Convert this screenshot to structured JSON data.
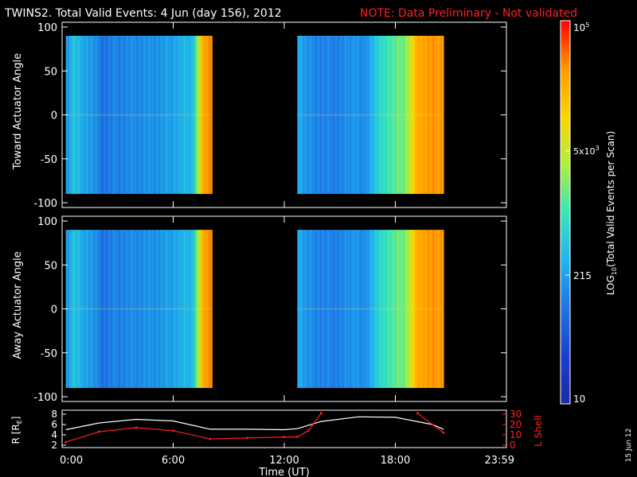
{
  "header": {
    "title": "TWINS2. Total Valid Events:  4 Jun (day 156), 2012",
    "note": "NOTE: Data Preliminary - Not validated"
  },
  "chart_data": [
    {
      "type": "heatmap",
      "panel": "top",
      "ylabel": "Toward Actuator Angle",
      "ylim": [
        -100,
        100
      ],
      "yticks": [
        "100",
        "50",
        "0",
        "-50",
        "-100"
      ],
      "xlim_hours": [
        0,
        24
      ],
      "data_segments_hours": [
        [
          0.2,
          8.1
        ],
        [
          12.7,
          20.6
        ]
      ],
      "value_scale": "log",
      "profile_hours": [
        0.2,
        0.3,
        0.5,
        0.9,
        1.3,
        2.2,
        2.6,
        4.0,
        5.5,
        7.0,
        7.6,
        8.1
      ],
      "profile_log10": [
        2.6,
        2.2,
        2.7,
        2.5,
        2.4,
        2.0,
        2.1,
        2.2,
        2.3,
        2.6,
        4.4,
        4.6
      ],
      "profile2_hours": [
        12.7,
        13.2,
        14.0,
        15.0,
        15.8,
        16.2,
        16.8,
        17.5,
        18.5,
        19.2,
        20.6
      ],
      "profile2_log10": [
        2.5,
        2.2,
        2.1,
        2.1,
        2.3,
        2.1,
        2.6,
        3.0,
        3.3,
        4.4,
        4.5
      ]
    },
    {
      "type": "heatmap",
      "panel": "middle",
      "ylabel": "Away Actuator Angle",
      "ylim": [
        -100,
        100
      ],
      "yticks": [
        "100",
        "50",
        "0",
        "-50",
        "-100"
      ],
      "xlim_hours": [
        0,
        24
      ],
      "data_segments_hours": [
        [
          0.2,
          8.1
        ],
        [
          12.7,
          20.6
        ]
      ],
      "value_scale": "log"
    },
    {
      "type": "line",
      "panel": "bottom",
      "ylabel_left": "R [R",
      "ylabel_left_sub": "E",
      "ylabel_left_close": "]",
      "ylabel_right": "L Shell",
      "yticks_left": [
        "8",
        "6",
        "4",
        "2"
      ],
      "yticks_right": [
        "30",
        "20",
        "10",
        "0"
      ],
      "xlabel": "Time (UT)",
      "xticks": [
        "0:00",
        "6:00",
        "12:00",
        "18:00",
        "23:59"
      ],
      "series": [
        {
          "color": "#ffffff",
          "x": [
            0.2,
            2.0,
            4.0,
            6.0,
            8.0,
            10.0,
            12.0,
            12.7,
            14.0,
            16.0,
            18.0,
            20.0,
            20.6
          ],
          "y": [
            5.0,
            6.3,
            7.0,
            6.7,
            5.1,
            5.1,
            5.0,
            5.2,
            6.6,
            7.5,
            7.4,
            6.0,
            5.1
          ]
        },
        {
          "color": "#ff2020",
          "x": [
            0.2,
            2.0,
            4.0,
            6.0,
            8.0,
            10.0,
            12.0,
            12.7,
            13.3,
            14.0
          ],
          "y_lshell": [
            3,
            13,
            17,
            14,
            6,
            7,
            8,
            8,
            14,
            31
          ]
        },
        {
          "color": "#ff2020",
          "x": [
            19.2,
            20.0,
            20.6
          ],
          "y_lshell": [
            31,
            20,
            12
          ]
        }
      ]
    }
  ],
  "colorbar": {
    "title": "LOG",
    "title_sub": "10",
    "title_rest": "(Total Valid  Events per Scan)",
    "tick_top": "10",
    "tick_top_exp": "5",
    "tick_mid": "5x10",
    "tick_mid_exp": "3",
    "tick_low": "215",
    "tick_bottom": "10",
    "stops": [
      "#ff0000",
      "#ff9a00",
      "#ffd400",
      "#aef03a",
      "#38e6b8",
      "#1fb6f0",
      "#1f74e6",
      "#1a3fd0",
      "#1b2aa8"
    ]
  },
  "date_stamp": "15 Jun 12"
}
